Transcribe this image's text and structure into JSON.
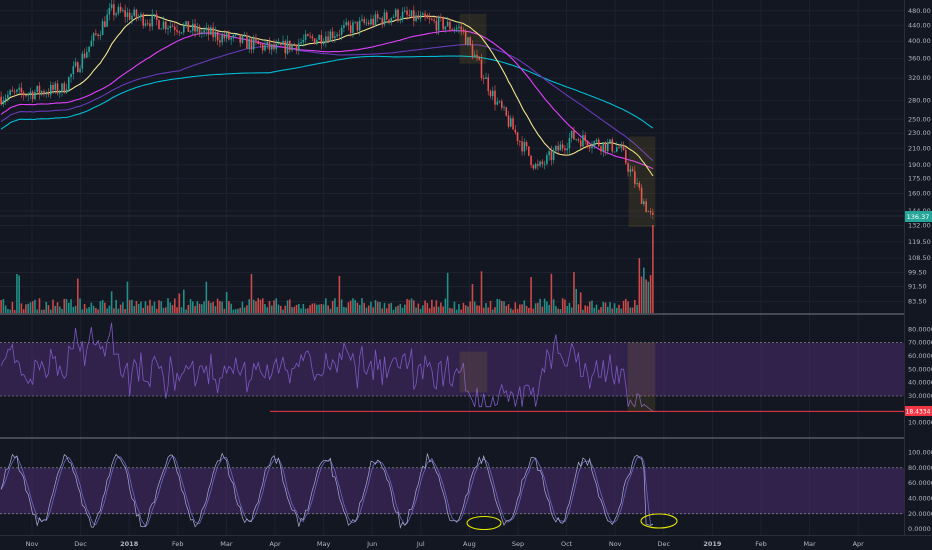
{
  "chart_data": [
    {
      "type": "candlestick",
      "pane": "price",
      "scale": "log",
      "ylim": [
        78,
        500
      ],
      "y_ticks": [
        "480.00",
        "440.00",
        "400.00",
        "360.00",
        "320.00",
        "280.00",
        "250.00",
        "230.00",
        "210.00",
        "190.00",
        "175.00",
        "160.00",
        "144.00",
        "132.00",
        "119.50",
        "108.50",
        "99.50",
        "91.50",
        "83.50"
      ],
      "last_price": "136.37",
      "series": [
        {
          "name": "",
          "color": "#00bcd4",
          "kind": "moving-average"
        },
        {
          "name": "",
          "color": "#673ab7",
          "kind": "moving-average"
        },
        {
          "name": "",
          "color": "#e040fb",
          "kind": "moving-average"
        },
        {
          "name": "",
          "color": "#f0e68c",
          "kind": "moving-average"
        }
      ],
      "ohlc_sample": [
        {
          "date": "2017-10-20",
          "close": 290
        },
        {
          "date": "2017-11-20",
          "close": 300
        },
        {
          "date": "2017-12-20",
          "close": 480
        },
        {
          "date": "2018-04-01",
          "close": 380
        },
        {
          "date": "2018-06-15",
          "close": 470
        },
        {
          "date": "2018-07-25",
          "close": 430
        },
        {
          "date": "2018-08-15",
          "close": 280
        },
        {
          "date": "2018-09-10",
          "close": 185
        },
        {
          "date": "2018-10-01",
          "close": 225
        },
        {
          "date": "2018-10-31",
          "close": 210
        },
        {
          "date": "2018-11-20",
          "close": 136.37
        }
      ],
      "colors": {
        "up": "#26a69a",
        "down": "#ef5350",
        "highlight_box": "#c9a227"
      }
    },
    {
      "type": "bar",
      "pane": "volume",
      "colors": {
        "up": "#26a69a",
        "down": "#ef5350"
      }
    },
    {
      "type": "line",
      "pane": "rsi",
      "ylim": [
        0,
        90
      ],
      "y_ticks": [
        "80.0000",
        "70.0000",
        "60.0000",
        "50.0000",
        "40.0000",
        "30.0000",
        "20.0000",
        "10.0000"
      ],
      "band": [
        30,
        70
      ],
      "last_value": "18.4334",
      "support_level": 18.4334,
      "colors": {
        "line": "#7e57c2",
        "band": "#4a2c6e",
        "support": "#f23645"
      }
    },
    {
      "type": "line",
      "pane": "stochastic",
      "ylim": [
        -5,
        115
      ],
      "y_ticks": [
        "100.0000",
        "80.0000",
        "60.0000",
        "40.0000",
        "20.0000",
        "0.0000"
      ],
      "band": [
        20,
        80
      ],
      "colors": {
        "k": "#aab0d0",
        "d": "#6d64c8",
        "band": "#4a2c6e",
        "annotation": "#e6e600"
      }
    }
  ],
  "x_axis": [
    {
      "label": "Nov",
      "bold": false
    },
    {
      "label": "Dec",
      "bold": false
    },
    {
      "label": "2018",
      "bold": true
    },
    {
      "label": "Feb",
      "bold": false
    },
    {
      "label": "Mar",
      "bold": false
    },
    {
      "label": "Apr",
      "bold": false
    },
    {
      "label": "May",
      "bold": false
    },
    {
      "label": "Jun",
      "bold": false
    },
    {
      "label": "Jul",
      "bold": false
    },
    {
      "label": "Aug",
      "bold": false
    },
    {
      "label": "Sep",
      "bold": false
    },
    {
      "label": "Oct",
      "bold": false
    },
    {
      "label": "Nov",
      "bold": false
    },
    {
      "label": "Dec",
      "bold": false
    },
    {
      "label": "2019",
      "bold": true
    },
    {
      "label": "Feb",
      "bold": false
    },
    {
      "label": "Mar",
      "bold": false
    },
    {
      "label": "Apr",
      "bold": false
    }
  ],
  "theme": {
    "background": "#131722",
    "grid": "#1e2230",
    "separator": "#787b86",
    "axis_text": "#b2b5be"
  }
}
